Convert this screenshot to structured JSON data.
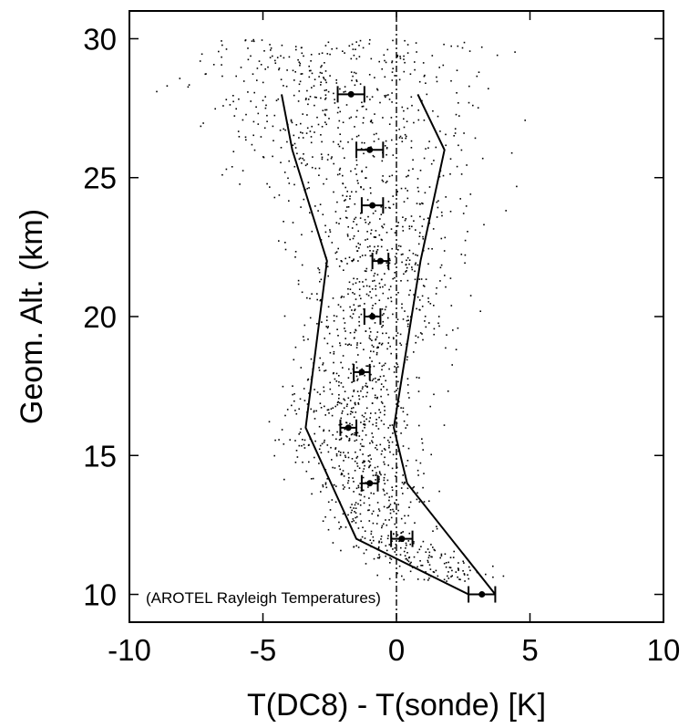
{
  "chart_data": {
    "type": "scatter",
    "title": "",
    "xlabel": "T(DC8) - T(sonde) [K]",
    "ylabel": "Geom. Alt. (km)",
    "xlim": [
      -10,
      10
    ],
    "ylim": [
      9,
      31
    ],
    "xticks": [
      -10,
      -5,
      0,
      5,
      10
    ],
    "yticks": [
      10,
      15,
      20,
      25,
      30
    ],
    "xtick_labels": [
      "-10",
      "-5",
      "0",
      "5",
      "10"
    ],
    "ytick_labels": [
      "10",
      "15",
      "20",
      "25",
      "30"
    ],
    "grid": false,
    "zero_line": {
      "x": 0,
      "style": "dash-dot"
    },
    "annotation": "(AROTEL Rayleigh Temperatures)",
    "means": [
      {
        "alt": 10,
        "x": 3.2,
        "err": 0.5
      },
      {
        "alt": 12,
        "x": 0.2,
        "err": 0.4
      },
      {
        "alt": 14,
        "x": -1.0,
        "err": 0.3
      },
      {
        "alt": 16,
        "x": -1.8,
        "err": 0.3
      },
      {
        "alt": 18,
        "x": -1.3,
        "err": 0.3
      },
      {
        "alt": 20,
        "x": -0.9,
        "err": 0.3
      },
      {
        "alt": 22,
        "x": -0.6,
        "err": 0.3
      },
      {
        "alt": 24,
        "x": -0.9,
        "err": 0.4
      },
      {
        "alt": 26,
        "x": -1.0,
        "err": 0.5
      },
      {
        "alt": 28,
        "x": -1.7,
        "err": 0.5
      }
    ],
    "envelope_left": [
      {
        "x": 2.7,
        "y": 10
      },
      {
        "x": -1.5,
        "y": 12
      },
      {
        "x": -3.4,
        "y": 16
      },
      {
        "x": -2.6,
        "y": 22
      },
      {
        "x": -3.9,
        "y": 26
      },
      {
        "x": -4.3,
        "y": 28
      }
    ],
    "envelope_right": [
      {
        "x": 3.7,
        "y": 10
      },
      {
        "x": 0.4,
        "y": 14
      },
      {
        "x": -0.1,
        "y": 16
      },
      {
        "x": 0.9,
        "y": 22
      },
      {
        "x": 1.8,
        "y": 26
      },
      {
        "x": 0.8,
        "y": 28
      }
    ],
    "scatter_profile": [
      {
        "alt": 10.5,
        "mean": 2.0,
        "spread": 1.0
      },
      {
        "alt": 12,
        "mean": -0.5,
        "spread": 1.0
      },
      {
        "alt": 14,
        "mean": -1.3,
        "spread": 1.1
      },
      {
        "alt": 16,
        "mean": -1.8,
        "spread": 1.2
      },
      {
        "alt": 18,
        "mean": -1.3,
        "spread": 1.3
      },
      {
        "alt": 20,
        "mean": -0.9,
        "spread": 1.4
      },
      {
        "alt": 22,
        "mean": -0.6,
        "spread": 1.5
      },
      {
        "alt": 24,
        "mean": -1.0,
        "spread": 1.8
      },
      {
        "alt": 26,
        "mean": -1.3,
        "spread": 2.4
      },
      {
        "alt": 28,
        "mean": -2.0,
        "spread": 2.8
      },
      {
        "alt": 30,
        "mean": -2.5,
        "spread": 3.0
      }
    ],
    "scatter_count": 1800
  }
}
